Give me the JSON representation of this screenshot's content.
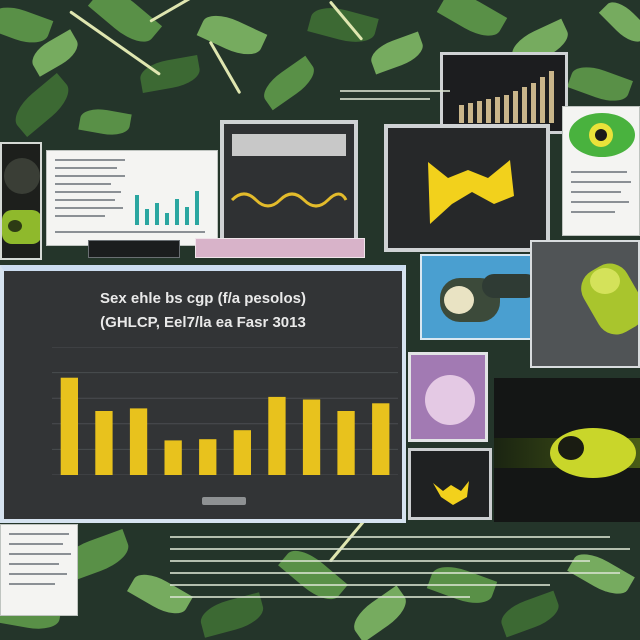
{
  "chart_data": {
    "type": "bar",
    "title": "Sex ehle bs cgp (f/a pesolos)",
    "subtitle": "(GHLCP, Eel7/la ea Fasr 3013",
    "xlabel": "",
    "ylabel": "",
    "categories": [
      "",
      "",
      "",
      "",
      "",
      "",
      "",
      "",
      "",
      ""
    ],
    "values": [
      76,
      50,
      52,
      27,
      28,
      35,
      61,
      59,
      50,
      56
    ],
    "ylim": [
      0,
      100
    ],
    "grid": true
  },
  "colors": {
    "bar": "#e8c21d",
    "background": "#323436",
    "foliage": "#5f9a4a"
  }
}
